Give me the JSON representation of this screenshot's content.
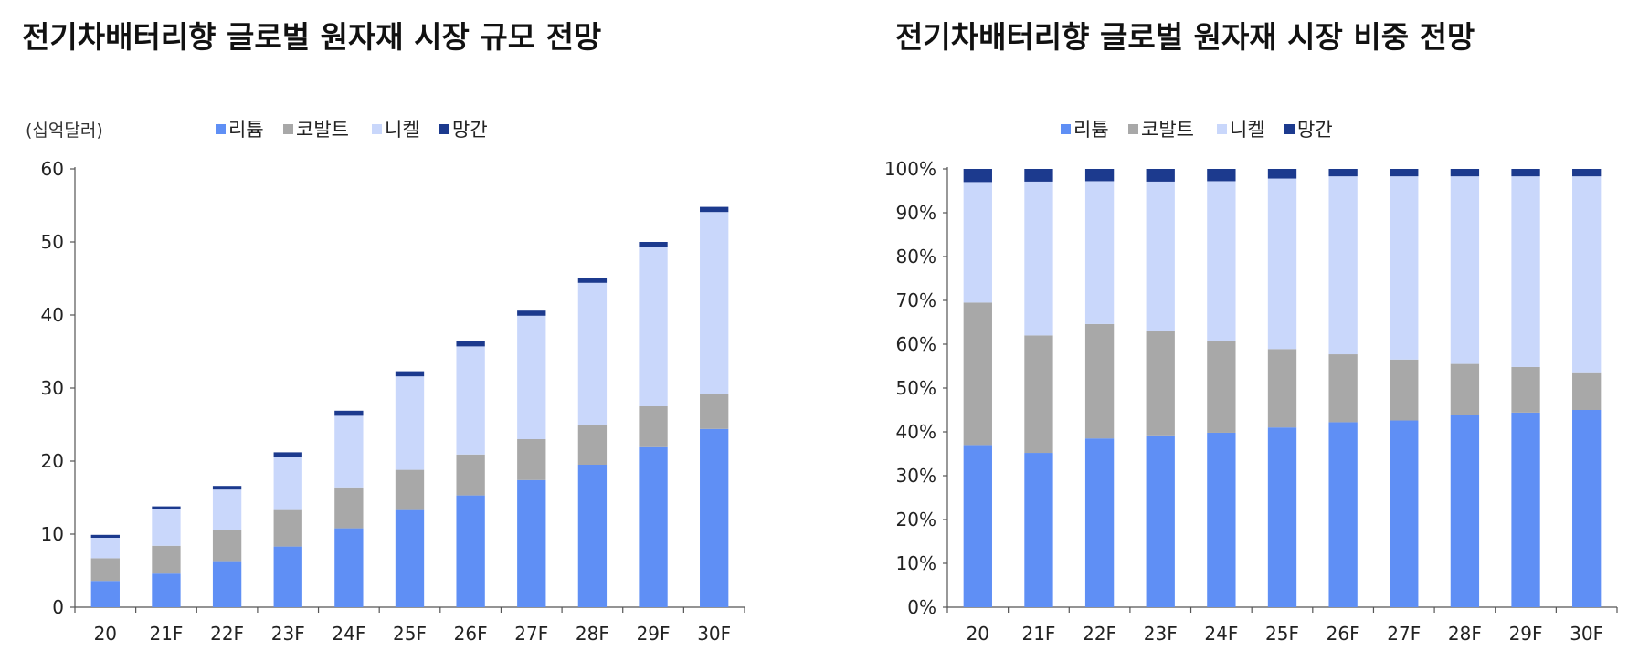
{
  "chart_data": [
    {
      "type": "bar",
      "stacked": true,
      "title": "전기차배터리향 글로벌 원자재 시장 규모 전망",
      "unit_label": "(십억달러)",
      "categories": [
        "20",
        "21F",
        "22F",
        "23F",
        "24F",
        "25F",
        "26F",
        "27F",
        "28F",
        "29F",
        "30F"
      ],
      "series": [
        {
          "name": "리튬",
          "color": "#5f8ff5",
          "values": [
            3.6,
            4.6,
            6.3,
            8.3,
            10.8,
            13.3,
            15.3,
            17.4,
            19.5,
            21.9,
            24.4
          ]
        },
        {
          "name": "코발트",
          "color": "#a8a8a8",
          "values": [
            3.1,
            3.8,
            4.3,
            5.0,
            5.6,
            5.5,
            5.6,
            5.6,
            5.5,
            5.6,
            4.8
          ]
        },
        {
          "name": "니켈",
          "color": "#c9d7fb",
          "values": [
            2.8,
            5.0,
            5.5,
            7.3,
            9.8,
            12.8,
            14.8,
            16.9,
            19.4,
            21.8,
            24.9
          ]
        },
        {
          "name": "망간",
          "color": "#1c3a8e",
          "values": [
            0.4,
            0.4,
            0.5,
            0.6,
            0.7,
            0.7,
            0.7,
            0.7,
            0.7,
            0.7,
            0.7
          ]
        }
      ],
      "ylim": [
        0,
        60
      ],
      "yticks": [
        "0",
        "10",
        "20",
        "30",
        "40",
        "50",
        "60"
      ],
      "legend_position": "top"
    },
    {
      "type": "bar",
      "stacked": true,
      "title": "전기차배터리향 글로벌 원자재 시장 비중 전망",
      "categories": [
        "20",
        "21F",
        "22F",
        "23F",
        "24F",
        "25F",
        "26F",
        "27F",
        "28F",
        "29F",
        "30F"
      ],
      "series": [
        {
          "name": "리튬",
          "color": "#5f8ff5",
          "values": [
            37,
            35.2,
            38.5,
            39.2,
            39.8,
            41.0,
            42.2,
            42.6,
            43.8,
            44.4,
            45.0
          ]
        },
        {
          "name": "코발트",
          "color": "#a8a8a8",
          "values": [
            32.5,
            26.8,
            26.1,
            23.8,
            20.9,
            17.9,
            15.5,
            13.9,
            11.7,
            10.4,
            8.6
          ]
        },
        {
          "name": "니켈",
          "color": "#c9d7fb",
          "values": [
            27.5,
            35.1,
            32.6,
            34.1,
            36.5,
            38.9,
            40.6,
            41.8,
            42.8,
            43.5,
            44.7
          ]
        },
        {
          "name": "망간",
          "color": "#1c3a8e",
          "values": [
            3.0,
            2.9,
            2.8,
            2.9,
            2.8,
            2.2,
            1.7,
            1.7,
            1.7,
            1.7,
            1.7
          ]
        }
      ],
      "ylim": [
        0,
        100
      ],
      "yticks": [
        "0%",
        "10%",
        "20%",
        "30%",
        "40%",
        "50%",
        "60%",
        "70%",
        "80%",
        "90%",
        "100%"
      ],
      "legend_position": "top"
    }
  ]
}
